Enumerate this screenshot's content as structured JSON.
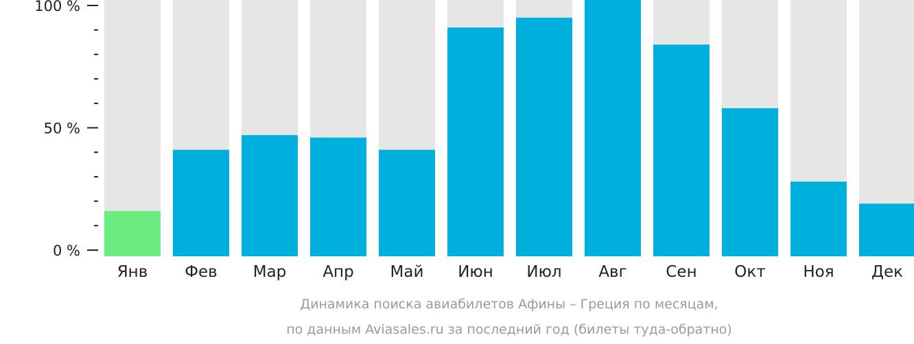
{
  "chart_data": {
    "type": "bar",
    "categories": [
      "Янв",
      "Фев",
      "Мар",
      "Апр",
      "Май",
      "Июн",
      "Июл",
      "Авг",
      "Сен",
      "Окт",
      "Ноя",
      "Дек"
    ],
    "values": [
      16,
      41,
      47,
      46,
      41,
      91,
      95,
      103,
      84,
      58,
      28,
      19
    ],
    "ylim": [
      0,
      100
    ],
    "y_ticks": [
      "0 %",
      "50 %",
      "100 %"
    ],
    "grid": false,
    "background_bar_color": "#e6e6e6",
    "bar_color": "#00b0dc",
    "highlight_color": "#6ced82",
    "highlight_category": "Янв",
    "caption_line1": "Динамика поиска авиабилетов Афины – Греция по месяцам,",
    "caption_line2": "по данным Aviasales.ru за последний год (билеты туда-обратно)"
  }
}
